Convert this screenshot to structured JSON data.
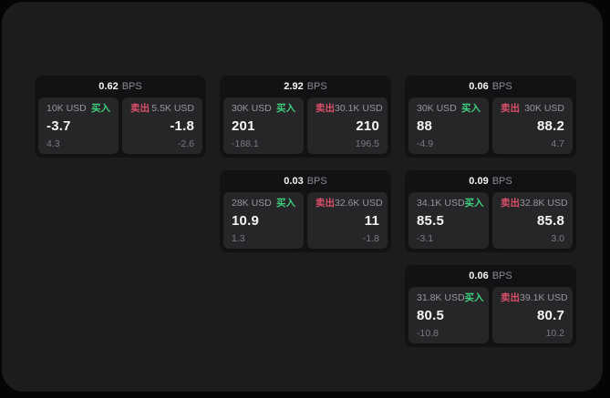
{
  "labels": {
    "bps_unit": "BPS",
    "buy": "买入",
    "sell": "卖出"
  },
  "colors": {
    "buy": "#3ecf7c",
    "sell": "#d94f68",
    "panel_background": "#1c1c1e",
    "card_background": "#121214",
    "tile_background": "#262628"
  },
  "cards": [
    {
      "bps": "0.62",
      "buy": {
        "amount": "10K USD",
        "value": "-3.7",
        "sub": "4.3"
      },
      "sell": {
        "amount": "5.5K USD",
        "value": "-1.8",
        "sub": "-2.6"
      }
    },
    {
      "bps": "2.92",
      "buy": {
        "amount": "30K USD",
        "value": "201",
        "sub": "-188.1"
      },
      "sell": {
        "amount": "30.1K USD",
        "value": "210",
        "sub": "196.5"
      }
    },
    {
      "bps": "0.06",
      "buy": {
        "amount": "30K USD",
        "value": "88",
        "sub": "-4.9"
      },
      "sell": {
        "amount": "30K USD",
        "value": "88.2",
        "sub": "4.7"
      }
    },
    {
      "bps": "0.03",
      "buy": {
        "amount": "28K USD",
        "value": "10.9",
        "sub": "1.3"
      },
      "sell": {
        "amount": "32.6K USD",
        "value": "11",
        "sub": "-1.8"
      }
    },
    {
      "bps": "0.09",
      "buy": {
        "amount": "34.1K USD",
        "value": "85.5",
        "sub": "-3.1"
      },
      "sell": {
        "amount": "32.8K USD",
        "value": "85.8",
        "sub": "3.0"
      }
    },
    {
      "bps": "0.06",
      "buy": {
        "amount": "31.8K USD",
        "value": "80.5",
        "sub": "-10.8"
      },
      "sell": {
        "amount": "39.1K USD",
        "value": "80.7",
        "sub": "10.2"
      }
    }
  ]
}
